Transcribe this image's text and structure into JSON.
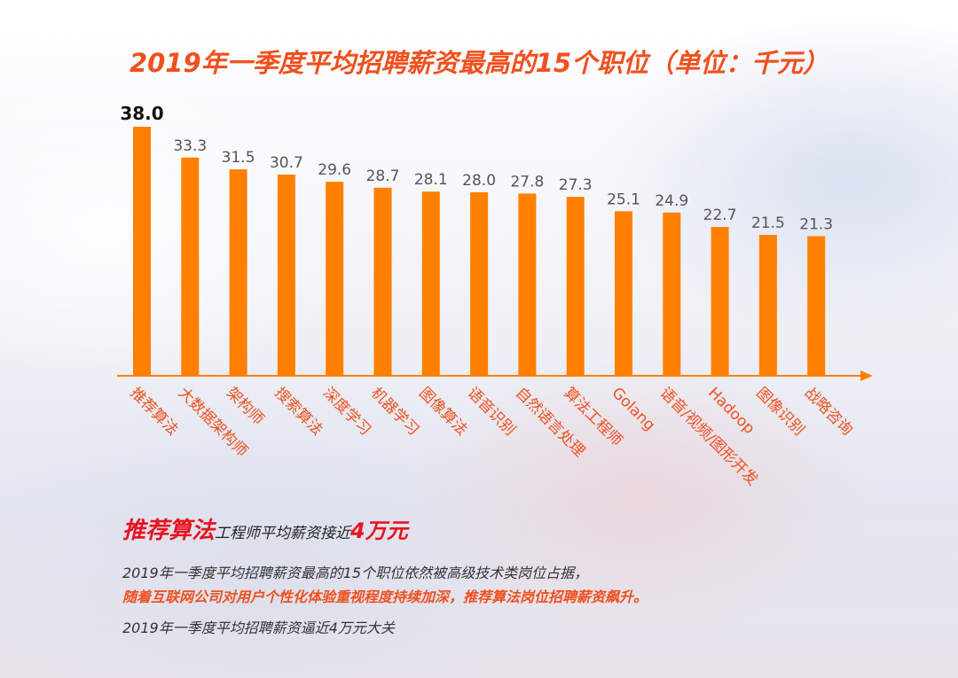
{
  "chart_data": {
    "type": "bar",
    "title": "2019年一季度平均招聘薪资最高的15个职位（单位：千元）",
    "categories": [
      "推荐算法",
      "大数据架构师",
      "架构师",
      "搜索算法",
      "深度学习",
      "机器学习",
      "图像算法",
      "语音识别",
      "自然语言处理",
      "算法工程师",
      "Golang",
      "语音/视频/图形开发",
      "Hadoop",
      "图像识别",
      "战略咨询"
    ],
    "values": [
      38.0,
      33.3,
      31.5,
      30.7,
      29.6,
      28.7,
      28.1,
      28.0,
      27.8,
      27.3,
      25.1,
      24.9,
      22.7,
      21.5,
      21.3
    ],
    "value_labels": [
      "38.0",
      "33.3",
      "31.5",
      "30.7",
      "29.6",
      "28.7",
      "28.1",
      "28.0",
      "27.8",
      "27.3",
      "25.1",
      "24.9",
      "22.7",
      "21.5",
      "21.3"
    ],
    "ylim": [
      0,
      38.0
    ],
    "xlabel": "",
    "ylabel": "",
    "colors": {
      "bar": "#ff7f00",
      "axis": "#ff7f00",
      "title": "#f0501e"
    }
  },
  "summary": {
    "headline_emphasis": "推荐算法",
    "headline_middle": "工程师平均薪资接近",
    "headline_amount": "4万元",
    "paragraph_line1": "2019年一季度平均招聘薪资最高的15个职位依然被高级技术类岗位占据，",
    "paragraph_line2": "随着互联网公司对用户个性化体验重视程度持续加深，推荐算法岗位招聘薪资飙升。",
    "paragraph_line3": "2019年一季度平均招聘薪资逼近4万元大关"
  }
}
